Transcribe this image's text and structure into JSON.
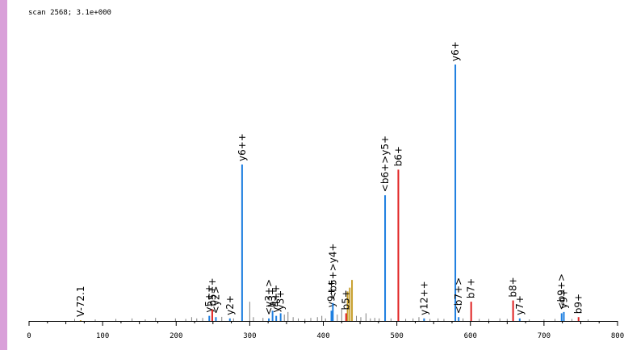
{
  "header": {
    "scan_text": "scan 2568; 3.1e+000"
  },
  "colors": {
    "y_ion": "#1e7fe0",
    "b_ion": "#e02020",
    "background_peak": "#808080",
    "precursor_peak": "#c8a030",
    "internal_peak": "#c8a030",
    "left_strip": "#d9a0d9"
  },
  "chart_data": {
    "type": "bar",
    "title": "",
    "xlabel": "",
    "ylabel": "",
    "xlim": [
      0,
      800
    ],
    "ylim": [
      0,
      100
    ],
    "x_ticks": [
      0,
      100,
      200,
      300,
      400,
      500,
      600,
      700,
      800
    ],
    "grid": false,
    "legend": "none",
    "peaks": [
      {
        "mz": 70.1,
        "intensity": 0.3,
        "kind": "other",
        "label": "V-72.1"
      },
      {
        "mz": 245,
        "intensity": 2.0,
        "kind": "y",
        "label": "y5++"
      },
      {
        "mz": 249,
        "intensity": 4.5,
        "kind": "b",
        "label": "b5++"
      },
      {
        "mz": 254,
        "intensity": 1.5,
        "kind": "y",
        "label": "<y2>"
      },
      {
        "mz": 273,
        "intensity": 1.0,
        "kind": "y",
        "label": "y2+"
      },
      {
        "mz": 289.6,
        "intensity": 61.0,
        "kind": "y",
        "label": "y6++"
      },
      {
        "mz": 326,
        "intensity": 1.0,
        "kind": "y",
        "label": "<y3+>"
      },
      {
        "mz": 331,
        "intensity": 4.0,
        "kind": "y",
        "label": "b3+"
      },
      {
        "mz": 336,
        "intensity": 2.0,
        "kind": "y",
        "label": "y4++"
      },
      {
        "mz": 342,
        "intensity": 3.0,
        "kind": "y",
        "label": "y3+"
      },
      {
        "mz": 411,
        "intensity": 4.0,
        "kind": "y",
        "label": "y9++"
      },
      {
        "mz": 413,
        "intensity": 7.0,
        "kind": "y",
        "label": "<b5+>y4+"
      },
      {
        "mz": 431,
        "intensity": 3.0,
        "kind": "b",
        "label": "b5+"
      },
      {
        "mz": 484,
        "intensity": 49.0,
        "kind": "y",
        "label": "<b6+>y5+"
      },
      {
        "mz": 502,
        "intensity": 59.0,
        "kind": "b",
        "label": "b6+"
      },
      {
        "mz": 537,
        "intensity": 1.0,
        "kind": "y",
        "label": "y12++"
      },
      {
        "mz": 579.5,
        "intensity": 100.0,
        "kind": "y",
        "label": "y6+"
      },
      {
        "mz": 584,
        "intensity": 1.5,
        "kind": "y",
        "label": "<b7+>"
      },
      {
        "mz": 601,
        "intensity": 7.5,
        "kind": "b",
        "label": "b7+"
      },
      {
        "mz": 658,
        "intensity": 8.0,
        "kind": "b",
        "label": "b8+"
      },
      {
        "mz": 667,
        "intensity": 1.0,
        "kind": "y",
        "label": "y7+"
      },
      {
        "mz": 724,
        "intensity": 3.0,
        "kind": "y",
        "label": "<b9+>"
      },
      {
        "mz": 727,
        "intensity": 3.5,
        "kind": "y",
        "label": "y9+"
      },
      {
        "mz": 747,
        "intensity": 1.5,
        "kind": "b",
        "label": "b9+"
      }
    ],
    "unlabeled_peaks": [
      {
        "mz": 62,
        "intensity": 0.8
      },
      {
        "mz": 90,
        "intensity": 0.6
      },
      {
        "mz": 118,
        "intensity": 0.8
      },
      {
        "mz": 140,
        "intensity": 1.0
      },
      {
        "mz": 158,
        "intensity": 0.6
      },
      {
        "mz": 172,
        "intensity": 1.2
      },
      {
        "mz": 199,
        "intensity": 1.0
      },
      {
        "mz": 213,
        "intensity": 0.8
      },
      {
        "mz": 221,
        "intensity": 1.5
      },
      {
        "mz": 228,
        "intensity": 1.0
      },
      {
        "mz": 236,
        "intensity": 1.2
      },
      {
        "mz": 262,
        "intensity": 1.6
      },
      {
        "mz": 278,
        "intensity": 1.0
      },
      {
        "mz": 300,
        "intensity": 7.5
      },
      {
        "mz": 305,
        "intensity": 1.5
      },
      {
        "mz": 318,
        "intensity": 1.2
      },
      {
        "mz": 347,
        "intensity": 2.5
      },
      {
        "mz": 352,
        "intensity": 3.5
      },
      {
        "mz": 359,
        "intensity": 1.5
      },
      {
        "mz": 366,
        "intensity": 1.0
      },
      {
        "mz": 375,
        "intensity": 0.8
      },
      {
        "mz": 383,
        "intensity": 1.2
      },
      {
        "mz": 392,
        "intensity": 1.5
      },
      {
        "mz": 398,
        "intensity": 2.0
      },
      {
        "mz": 403,
        "intensity": 1.0
      },
      {
        "mz": 419,
        "intensity": 2.5
      },
      {
        "mz": 425,
        "intensity": 5.0
      },
      {
        "mz": 445,
        "intensity": 2.0
      },
      {
        "mz": 451,
        "intensity": 1.5
      },
      {
        "mz": 458,
        "intensity": 3.0
      },
      {
        "mz": 464,
        "intensity": 1.0
      },
      {
        "mz": 470,
        "intensity": 1.2
      },
      {
        "mz": 476,
        "intensity": 1.0
      },
      {
        "mz": 492,
        "intensity": 1.0
      },
      {
        "mz": 512,
        "intensity": 0.8
      },
      {
        "mz": 522,
        "intensity": 1.0
      },
      {
        "mz": 530,
        "intensity": 1.5
      },
      {
        "mz": 545,
        "intensity": 0.8
      },
      {
        "mz": 556,
        "intensity": 1.0
      },
      {
        "mz": 564,
        "intensity": 0.8
      },
      {
        "mz": 590,
        "intensity": 1.0
      },
      {
        "mz": 612,
        "intensity": 0.8
      },
      {
        "mz": 625,
        "intensity": 0.8
      },
      {
        "mz": 640,
        "intensity": 1.0
      },
      {
        "mz": 650,
        "intensity": 0.8
      },
      {
        "mz": 680,
        "intensity": 0.6
      },
      {
        "mz": 700,
        "intensity": 0.6
      },
      {
        "mz": 715,
        "intensity": 0.8
      },
      {
        "mz": 738,
        "intensity": 0.8
      },
      {
        "mz": 760,
        "intensity": 0.6
      }
    ],
    "precursor_peaks": [
      {
        "mz": 433,
        "intensity": 11.5
      },
      {
        "mz": 436,
        "intensity": 13.0
      },
      {
        "mz": 439,
        "intensity": 16.0
      }
    ]
  }
}
